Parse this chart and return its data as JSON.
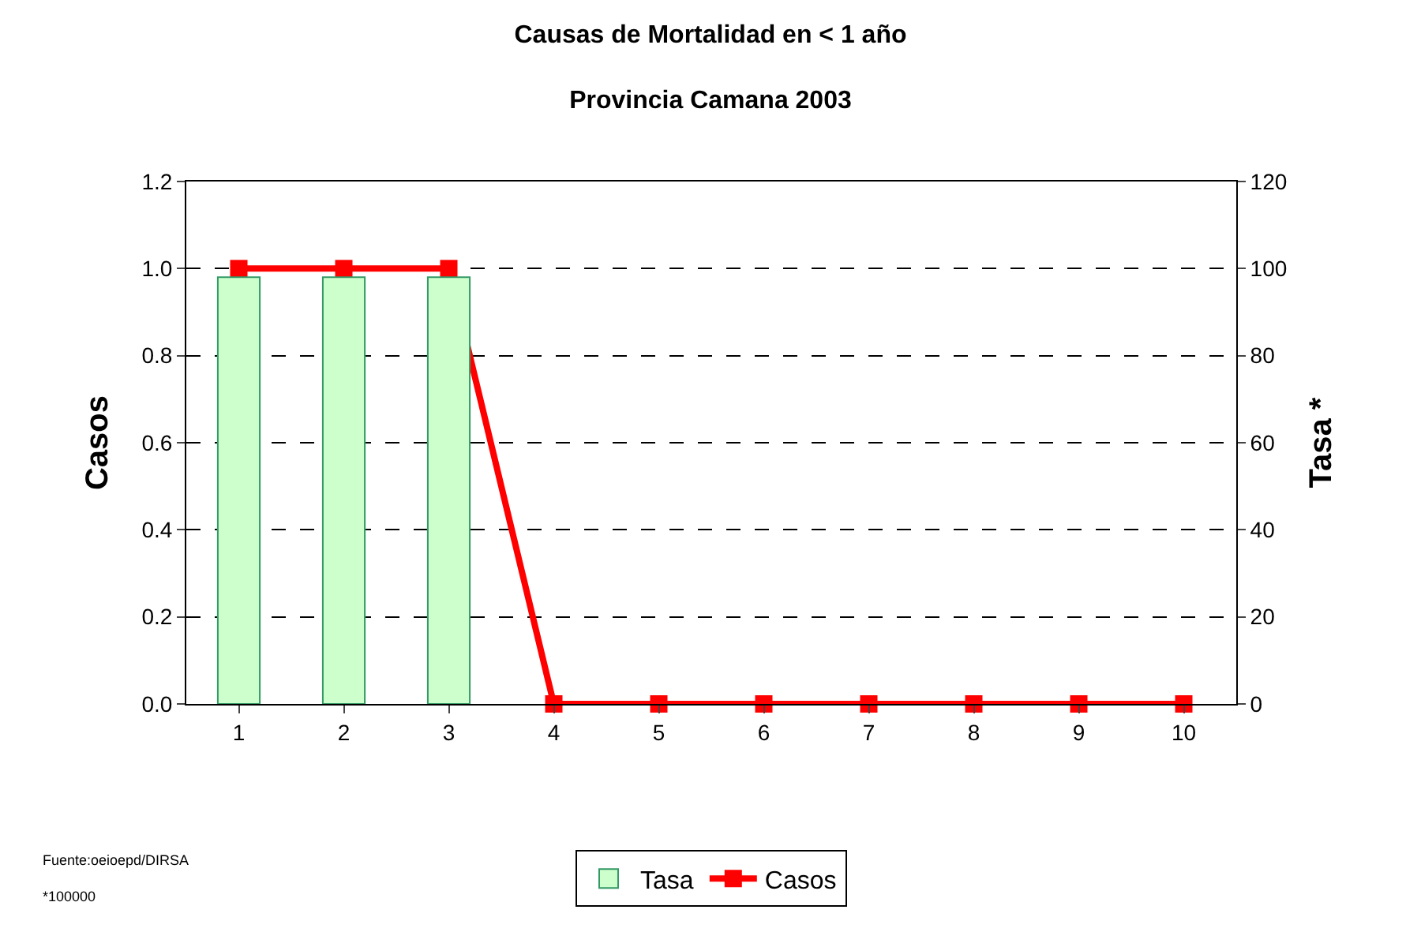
{
  "chart_data": {
    "type": "bar",
    "title": "Causas de Mortalidad en < 1 año",
    "subtitle": "Provincia Camana 2003",
    "ylabel": "Casos",
    "y2label": "Tasa *",
    "categories": [
      "1",
      "2",
      "3",
      "4",
      "5",
      "6",
      "7",
      "8",
      "9",
      "10"
    ],
    "series": [
      {
        "name": "Tasa",
        "axis": "y2",
        "color": "#ccffcc",
        "values": [
          98,
          98,
          98,
          0,
          0,
          0,
          0,
          0,
          0,
          0
        ]
      },
      {
        "name": "Casos",
        "type": "line",
        "axis": "y",
        "color": "#ff0000",
        "values": [
          1,
          1,
          1,
          0,
          0,
          0,
          0,
          0,
          0,
          0
        ]
      }
    ],
    "ylim": [
      0,
      1.2
    ],
    "yticks": [
      {
        "value": 0,
        "label": "0.0"
      },
      {
        "value": 0.2,
        "label": "0.2"
      },
      {
        "value": 0.4,
        "label": "0.4"
      },
      {
        "value": 0.6,
        "label": "0.6"
      },
      {
        "value": 0.8,
        "label": "0.8"
      },
      {
        "value": 1,
        "label": "1.0"
      },
      {
        "value": 1.2,
        "label": "1.2"
      }
    ],
    "y2lim": [
      0,
      120
    ],
    "y2ticks": [
      0,
      20,
      40,
      60,
      80,
      100,
      120
    ],
    "grid": "y",
    "legend": "bottom",
    "marker": "square",
    "line_style": "solid",
    "annotations": [
      "Fuente:oeioepd/DIRSA",
      "*100000"
    ]
  }
}
